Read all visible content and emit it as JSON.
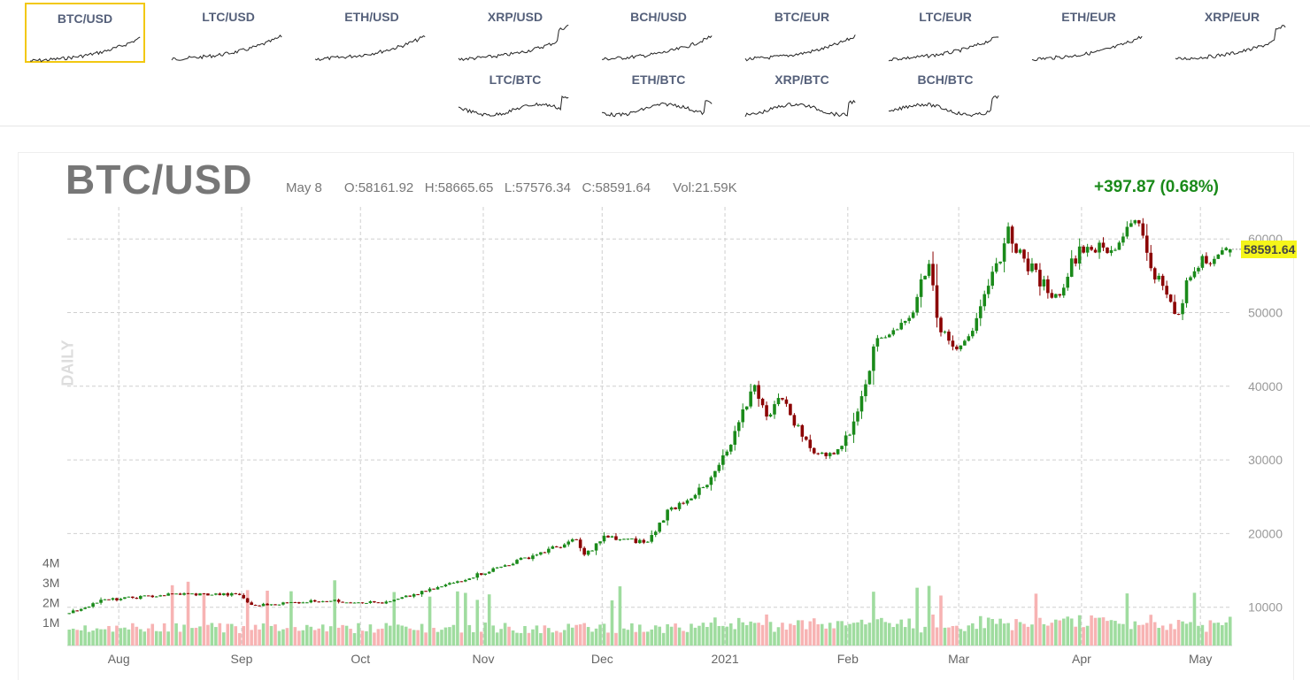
{
  "pairs": [
    {
      "label": "BTC/USD",
      "active": true
    },
    {
      "label": "LTC/USD"
    },
    {
      "label": "ETH/USD"
    },
    {
      "label": "XRP/USD"
    },
    {
      "label": "BCH/USD"
    },
    {
      "label": "BTC/EUR"
    },
    {
      "label": "LTC/EUR"
    },
    {
      "label": "ETH/EUR"
    },
    {
      "label": "XRP/EUR"
    },
    {
      "label": "LTC/BTC"
    },
    {
      "label": "ETH/BTC"
    },
    {
      "label": "XRP/BTC"
    },
    {
      "label": "BCH/BTC"
    }
  ],
  "header": {
    "symbol": "BTC/USD",
    "date": "May 8",
    "open": "O:58161.92",
    "high": "H:58665.65",
    "low": "L:57576.34",
    "close": "C:58591.64",
    "volume": "Vol:21.59K",
    "change": "+397.87 (0.68%)",
    "period": "DAILY",
    "last_price": "58591.64"
  },
  "colors": {
    "up": "#1a8a1a",
    "down": "#8b0000",
    "vol_up": "#9fdc9f",
    "vol_down": "#f7b3b3",
    "highlight": "#f2c811"
  },
  "chart_data": {
    "type": "candlestick",
    "ylim": [
      0,
      65000
    ],
    "y_ticks": [
      10000,
      20000,
      30000,
      40000,
      50000,
      60000
    ],
    "volume_ticks": [
      "1M",
      "2M",
      "3M",
      "4M"
    ],
    "x_ticks": [
      "Aug",
      "Sep",
      "Oct",
      "Nov",
      "Dec",
      "2021",
      "Feb",
      "Mar",
      "Apr",
      "May"
    ],
    "x_tick_dates": [
      "2020-08-01",
      "2020-09-01",
      "2020-10-01",
      "2020-11-01",
      "2020-12-01",
      "2021-01-01",
      "2021-02-01",
      "2021-03-01",
      "2021-04-01",
      "2021-05-01"
    ],
    "start_date": "2020-07-19",
    "end_date": "2021-05-08",
    "close_keypoints": [
      [
        "2020-07-19",
        9200
      ],
      [
        "2020-07-27",
        10900
      ],
      [
        "2020-08-02",
        11200
      ],
      [
        "2020-08-15",
        11800
      ],
      [
        "2020-08-31",
        11700
      ],
      [
        "2020-09-03",
        10200
      ],
      [
        "2020-09-20",
        10900
      ],
      [
        "2020-10-07",
        10600
      ],
      [
        "2020-10-21",
        12800
      ],
      [
        "2020-11-05",
        15500
      ],
      [
        "2020-11-17",
        17800
      ],
      [
        "2020-11-24",
        19100
      ],
      [
        "2020-11-26",
        17000
      ],
      [
        "2020-12-01",
        19500
      ],
      [
        "2020-12-12",
        18800
      ],
      [
        "2020-12-17",
        23000
      ],
      [
        "2020-12-27",
        26500
      ],
      [
        "2021-01-02",
        32000
      ],
      [
        "2021-01-08",
        40500
      ],
      [
        "2021-01-11",
        35500
      ],
      [
        "2021-01-14",
        39000
      ],
      [
        "2021-01-22",
        31500
      ],
      [
        "2021-01-27",
        30500
      ],
      [
        "2021-02-01",
        33500
      ],
      [
        "2021-02-08",
        46500
      ],
      [
        "2021-02-16",
        49000
      ],
      [
        "2021-02-21",
        57500
      ],
      [
        "2021-02-23",
        48500
      ],
      [
        "2021-02-28",
        45500
      ],
      [
        "2021-03-05",
        48500
      ],
      [
        "2021-03-13",
        61000
      ],
      [
        "2021-03-17",
        57000
      ],
      [
        "2021-03-25",
        52000
      ],
      [
        "2021-03-31",
        58800
      ],
      [
        "2021-04-03",
        59000
      ],
      [
        "2021-04-08",
        58000
      ],
      [
        "2021-04-14",
        63500
      ],
      [
        "2021-04-18",
        56500
      ],
      [
        "2021-04-25",
        49000
      ],
      [
        "2021-04-27",
        54000
      ],
      [
        "2021-05-01",
        57800
      ],
      [
        "2021-05-05",
        57300
      ],
      [
        "2021-05-08",
        58591.64
      ]
    ],
    "last_candle": {
      "date": "2021-05-08",
      "open": 58161.92,
      "high": 58665.65,
      "low": 57576.34,
      "close": 58591.64,
      "volume": "21.59K"
    }
  }
}
